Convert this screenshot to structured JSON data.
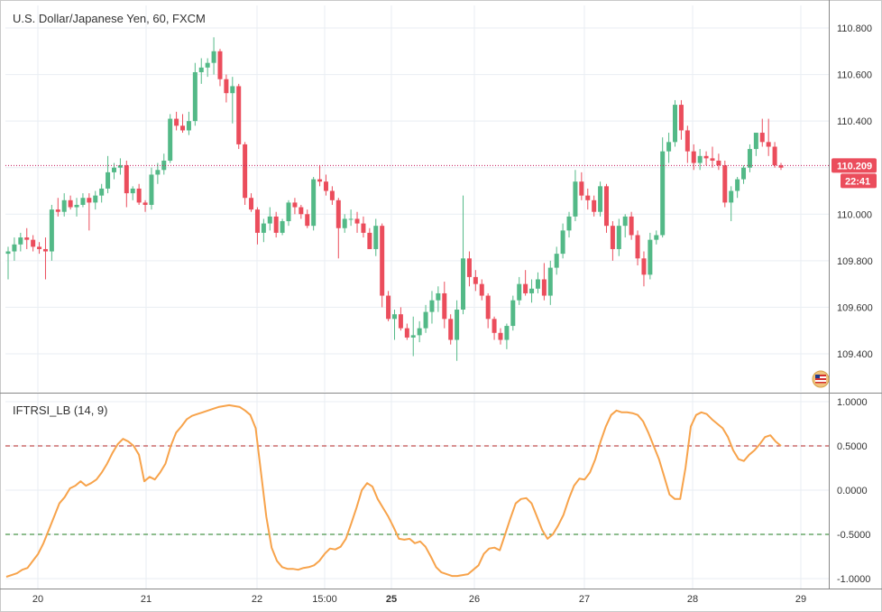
{
  "window": {
    "title": "U.S. Dollar/Japanese Yen, 60, FXCM",
    "current_price": "110.209",
    "countdown": "22:41",
    "flag_icon": "us-flag-icon"
  },
  "colors": {
    "up": "#53b987",
    "down": "#eb4d5c",
    "indicator": "#f7a34b",
    "upper_level": "#b22222",
    "lower_level": "#1e7b1e",
    "price_line": "#c2185b",
    "grid": "#e9eef3",
    "axis_text": "#333333"
  },
  "chart_data": [
    {
      "type": "candlestick",
      "title": "U.S. Dollar/Japanese Yen, 60, FXCM",
      "ylim": [
        109.25,
        110.85
      ],
      "y_ticks": [
        "110.800",
        "110.600",
        "110.400",
        "110.200",
        "110.000",
        "109.800",
        "109.600",
        "109.400"
      ],
      "x_labels": [
        "20",
        "21",
        "22",
        "15:00",
        "25",
        "26",
        "27",
        "28",
        "29"
      ],
      "last_price": 110.209,
      "candles_approx": [
        [
          109.83,
          109.86,
          109.72,
          109.84
        ],
        [
          109.84,
          109.9,
          109.8,
          109.87
        ],
        [
          109.87,
          109.92,
          109.84,
          109.9
        ],
        [
          109.9,
          109.94,
          109.85,
          109.89
        ],
        [
          109.89,
          109.91,
          109.84,
          109.86
        ],
        [
          109.86,
          109.88,
          109.83,
          109.85
        ],
        [
          109.85,
          109.9,
          109.72,
          109.84
        ],
        [
          109.84,
          110.04,
          109.8,
          110.02
        ],
        [
          110.02,
          110.07,
          109.99,
          110.01
        ],
        [
          110.01,
          110.09,
          109.99,
          110.06
        ],
        [
          110.06,
          110.08,
          110.02,
          110.03
        ],
        [
          110.03,
          110.07,
          109.99,
          110.04
        ],
        [
          110.04,
          110.09,
          110.03,
          110.07
        ],
        [
          110.07,
          110.09,
          109.93,
          110.05
        ],
        [
          110.05,
          110.1,
          110.02,
          110.08
        ],
        [
          110.08,
          110.13,
          110.05,
          110.11
        ],
        [
          110.11,
          110.25,
          110.09,
          110.18
        ],
        [
          110.18,
          110.22,
          110.15,
          110.2
        ],
        [
          110.2,
          110.24,
          110.17,
          110.21
        ],
        [
          110.21,
          110.23,
          110.03,
          110.09
        ],
        [
          110.09,
          110.12,
          110.06,
          110.11
        ],
        [
          110.11,
          110.13,
          110.04,
          110.05
        ],
        [
          110.05,
          110.06,
          110.01,
          110.04
        ],
        [
          110.04,
          110.2,
          110.02,
          110.17
        ],
        [
          110.17,
          110.22,
          110.13,
          110.19
        ],
        [
          110.19,
          110.26,
          110.17,
          110.23
        ],
        [
          110.23,
          110.43,
          110.22,
          110.41
        ],
        [
          110.41,
          110.44,
          110.36,
          110.38
        ],
        [
          110.38,
          110.43,
          110.35,
          110.36
        ],
        [
          110.36,
          110.44,
          110.34,
          110.4
        ],
        [
          110.4,
          110.65,
          110.38,
          110.61
        ],
        [
          110.61,
          110.67,
          110.56,
          110.63
        ],
        [
          110.63,
          110.67,
          110.59,
          110.65
        ],
        [
          110.65,
          110.76,
          110.6,
          110.7
        ],
        [
          110.7,
          110.71,
          110.55,
          110.58
        ],
        [
          110.58,
          110.6,
          110.48,
          110.52
        ],
        [
          110.52,
          110.59,
          110.39,
          110.55
        ],
        [
          110.55,
          110.56,
          110.28,
          110.3
        ],
        [
          110.3,
          110.31,
          110.04,
          110.07
        ],
        [
          110.07,
          110.09,
          110.01,
          110.02
        ],
        [
          110.02,
          110.03,
          109.87,
          109.92
        ],
        [
          109.92,
          109.98,
          109.88,
          109.96
        ],
        [
          109.96,
          110.03,
          109.93,
          109.99
        ],
        [
          109.99,
          110.01,
          109.9,
          109.92
        ],
        [
          109.92,
          109.98,
          109.91,
          109.97
        ],
        [
          109.97,
          110.06,
          109.95,
          110.05
        ],
        [
          110.05,
          110.07,
          110.0,
          110.03
        ],
        [
          110.03,
          110.04,
          109.98,
          110.0
        ],
        [
          110.0,
          110.02,
          109.94,
          109.95
        ],
        [
          109.95,
          110.16,
          109.93,
          110.15
        ],
        [
          110.15,
          110.21,
          110.12,
          110.14
        ],
        [
          110.14,
          110.17,
          110.08,
          110.1
        ],
        [
          110.1,
          110.12,
          110.04,
          110.06
        ],
        [
          110.06,
          110.07,
          109.81,
          109.94
        ],
        [
          109.94,
          110.0,
          109.92,
          109.98
        ],
        [
          109.98,
          110.02,
          109.95,
          109.98
        ],
        [
          109.98,
          110.01,
          109.92,
          109.96
        ],
        [
          109.96,
          109.99,
          109.9,
          109.92
        ],
        [
          109.92,
          109.94,
          109.85,
          109.85
        ],
        [
          109.85,
          109.98,
          109.82,
          109.95
        ],
        [
          109.95,
          109.96,
          109.6,
          109.65
        ],
        [
          109.65,
          109.67,
          109.54,
          109.55
        ],
        [
          109.55,
          109.59,
          109.46,
          109.57
        ],
        [
          109.57,
          109.6,
          109.5,
          109.51
        ],
        [
          109.51,
          109.53,
          109.46,
          109.47
        ],
        [
          109.47,
          109.56,
          109.39,
          109.48
        ],
        [
          109.48,
          109.54,
          109.45,
          109.51
        ],
        [
          109.51,
          109.61,
          109.49,
          109.58
        ],
        [
          109.58,
          109.67,
          109.53,
          109.63
        ],
        [
          109.63,
          109.69,
          109.58,
          109.66
        ],
        [
          109.66,
          109.71,
          109.51,
          109.55
        ],
        [
          109.55,
          109.57,
          109.44,
          109.46
        ],
        [
          109.46,
          109.63,
          109.37,
          109.59
        ],
        [
          109.59,
          110.08,
          109.57,
          109.81
        ],
        [
          109.81,
          109.84,
          109.69,
          109.73
        ],
        [
          109.73,
          109.76,
          109.67,
          109.7
        ],
        [
          109.7,
          109.72,
          109.63,
          109.65
        ],
        [
          109.65,
          109.66,
          109.51,
          109.55
        ],
        [
          109.55,
          109.56,
          109.46,
          109.49
        ],
        [
          109.49,
          109.51,
          109.44,
          109.46
        ],
        [
          109.46,
          109.53,
          109.42,
          109.52
        ],
        [
          109.52,
          109.65,
          109.5,
          109.63
        ],
        [
          109.63,
          109.73,
          109.61,
          109.7
        ],
        [
          109.7,
          109.76,
          109.65,
          109.66
        ],
        [
          109.66,
          109.72,
          109.62,
          109.68
        ],
        [
          109.68,
          109.75,
          109.66,
          109.72
        ],
        [
          109.72,
          109.79,
          109.63,
          109.65
        ],
        [
          109.65,
          109.8,
          109.61,
          109.77
        ],
        [
          109.77,
          109.86,
          109.74,
          109.83
        ],
        [
          109.83,
          109.96,
          109.81,
          109.93
        ],
        [
          109.93,
          110.01,
          109.9,
          109.99
        ],
        [
          109.99,
          110.19,
          109.97,
          110.14
        ],
        [
          110.14,
          110.18,
          110.06,
          110.08
        ],
        [
          110.08,
          110.11,
          110.02,
          110.06
        ],
        [
          110.06,
          110.08,
          109.99,
          110.01
        ],
        [
          110.01,
          110.14,
          109.99,
          110.12
        ],
        [
          110.12,
          110.13,
          109.92,
          109.95
        ],
        [
          109.95,
          109.97,
          109.8,
          109.85
        ],
        [
          109.85,
          109.98,
          109.82,
          109.95
        ],
        [
          109.95,
          110.0,
          109.9,
          109.99
        ],
        [
          109.99,
          110.01,
          109.89,
          109.91
        ],
        [
          109.91,
          109.93,
          109.78,
          109.81
        ],
        [
          109.81,
          109.84,
          109.69,
          109.74
        ],
        [
          109.74,
          109.92,
          109.72,
          109.89
        ],
        [
          109.89,
          109.93,
          109.87,
          109.91
        ],
        [
          109.91,
          110.33,
          109.9,
          110.27
        ],
        [
          110.27,
          110.35,
          110.22,
          110.31
        ],
        [
          110.31,
          110.49,
          110.29,
          110.47
        ],
        [
          110.47,
          110.49,
          110.32,
          110.36
        ],
        [
          110.36,
          110.38,
          110.22,
          110.27
        ],
        [
          110.27,
          110.3,
          110.19,
          110.22
        ],
        [
          110.22,
          110.28,
          110.19,
          110.25
        ],
        [
          110.25,
          110.27,
          110.21,
          110.24
        ],
        [
          110.24,
          110.29,
          110.2,
          110.23
        ],
        [
          110.23,
          110.26,
          110.19,
          110.21
        ],
        [
          110.21,
          110.23,
          110.03,
          110.05
        ],
        [
          110.05,
          110.12,
          109.97,
          110.1
        ],
        [
          110.1,
          110.16,
          110.07,
          110.15
        ],
        [
          110.15,
          110.21,
          110.13,
          110.2
        ],
        [
          110.2,
          110.3,
          110.18,
          110.28
        ],
        [
          110.28,
          110.35,
          110.25,
          110.35
        ],
        [
          110.35,
          110.41,
          110.29,
          110.31
        ],
        [
          110.31,
          110.41,
          110.25,
          110.29
        ],
        [
          110.29,
          110.31,
          110.2,
          110.21
        ],
        [
          110.21,
          110.22,
          110.19,
          110.2
        ]
      ]
    },
    {
      "type": "line",
      "title": "IFTRSI_LB (14, 9)",
      "ylim": [
        -1.05,
        1.05
      ],
      "y_ticks": [
        "1.0000",
        "0.5000",
        "0.0000",
        "-0.5000",
        "-1.0000"
      ],
      "levels": [
        0.5,
        -0.5
      ],
      "series": [
        {
          "name": "IFTRSI_LB",
          "values": [
            -0.98,
            -0.96,
            -0.94,
            -0.9,
            -0.88,
            -0.8,
            -0.72,
            -0.6,
            -0.45,
            -0.3,
            -0.15,
            -0.08,
            0.02,
            0.05,
            0.1,
            0.05,
            0.08,
            0.12,
            0.2,
            0.3,
            0.42,
            0.52,
            0.58,
            0.55,
            0.5,
            0.4,
            0.1,
            0.15,
            0.12,
            0.2,
            0.3,
            0.5,
            0.65,
            0.72,
            0.8,
            0.84,
            0.86,
            0.88,
            0.9,
            0.92,
            0.94,
            0.95,
            0.96,
            0.95,
            0.94,
            0.9,
            0.85,
            0.7,
            0.2,
            -0.3,
            -0.65,
            -0.8,
            -0.87,
            -0.89,
            -0.89,
            -0.9,
            -0.88,
            -0.87,
            -0.85,
            -0.8,
            -0.72,
            -0.66,
            -0.67,
            -0.64,
            -0.55,
            -0.38,
            -0.2,
            0.0,
            0.08,
            0.04,
            -0.1,
            -0.2,
            -0.3,
            -0.42,
            -0.55,
            -0.56,
            -0.55,
            -0.6,
            -0.58,
            -0.64,
            -0.75,
            -0.87,
            -0.93,
            -0.95,
            -0.97,
            -0.97,
            -0.96,
            -0.95,
            -0.9,
            -0.85,
            -0.72,
            -0.66,
            -0.65,
            -0.68,
            -0.5,
            -0.32,
            -0.15,
            -0.1,
            -0.09,
            -0.15,
            -0.3,
            -0.45,
            -0.55,
            -0.5,
            -0.4,
            -0.28,
            -0.1,
            0.05,
            0.13,
            0.12,
            0.2,
            0.35,
            0.55,
            0.72,
            0.85,
            0.9,
            0.88,
            0.88,
            0.87,
            0.85,
            0.78,
            0.65,
            0.5,
            0.35,
            0.15,
            -0.05,
            -0.1,
            -0.1,
            0.25,
            0.72,
            0.85,
            0.88,
            0.86,
            0.8,
            0.75,
            0.7,
            0.6,
            0.45,
            0.35,
            0.33,
            0.4,
            0.45,
            0.52,
            0.6,
            0.62,
            0.55,
            0.5
          ]
        }
      ]
    }
  ]
}
